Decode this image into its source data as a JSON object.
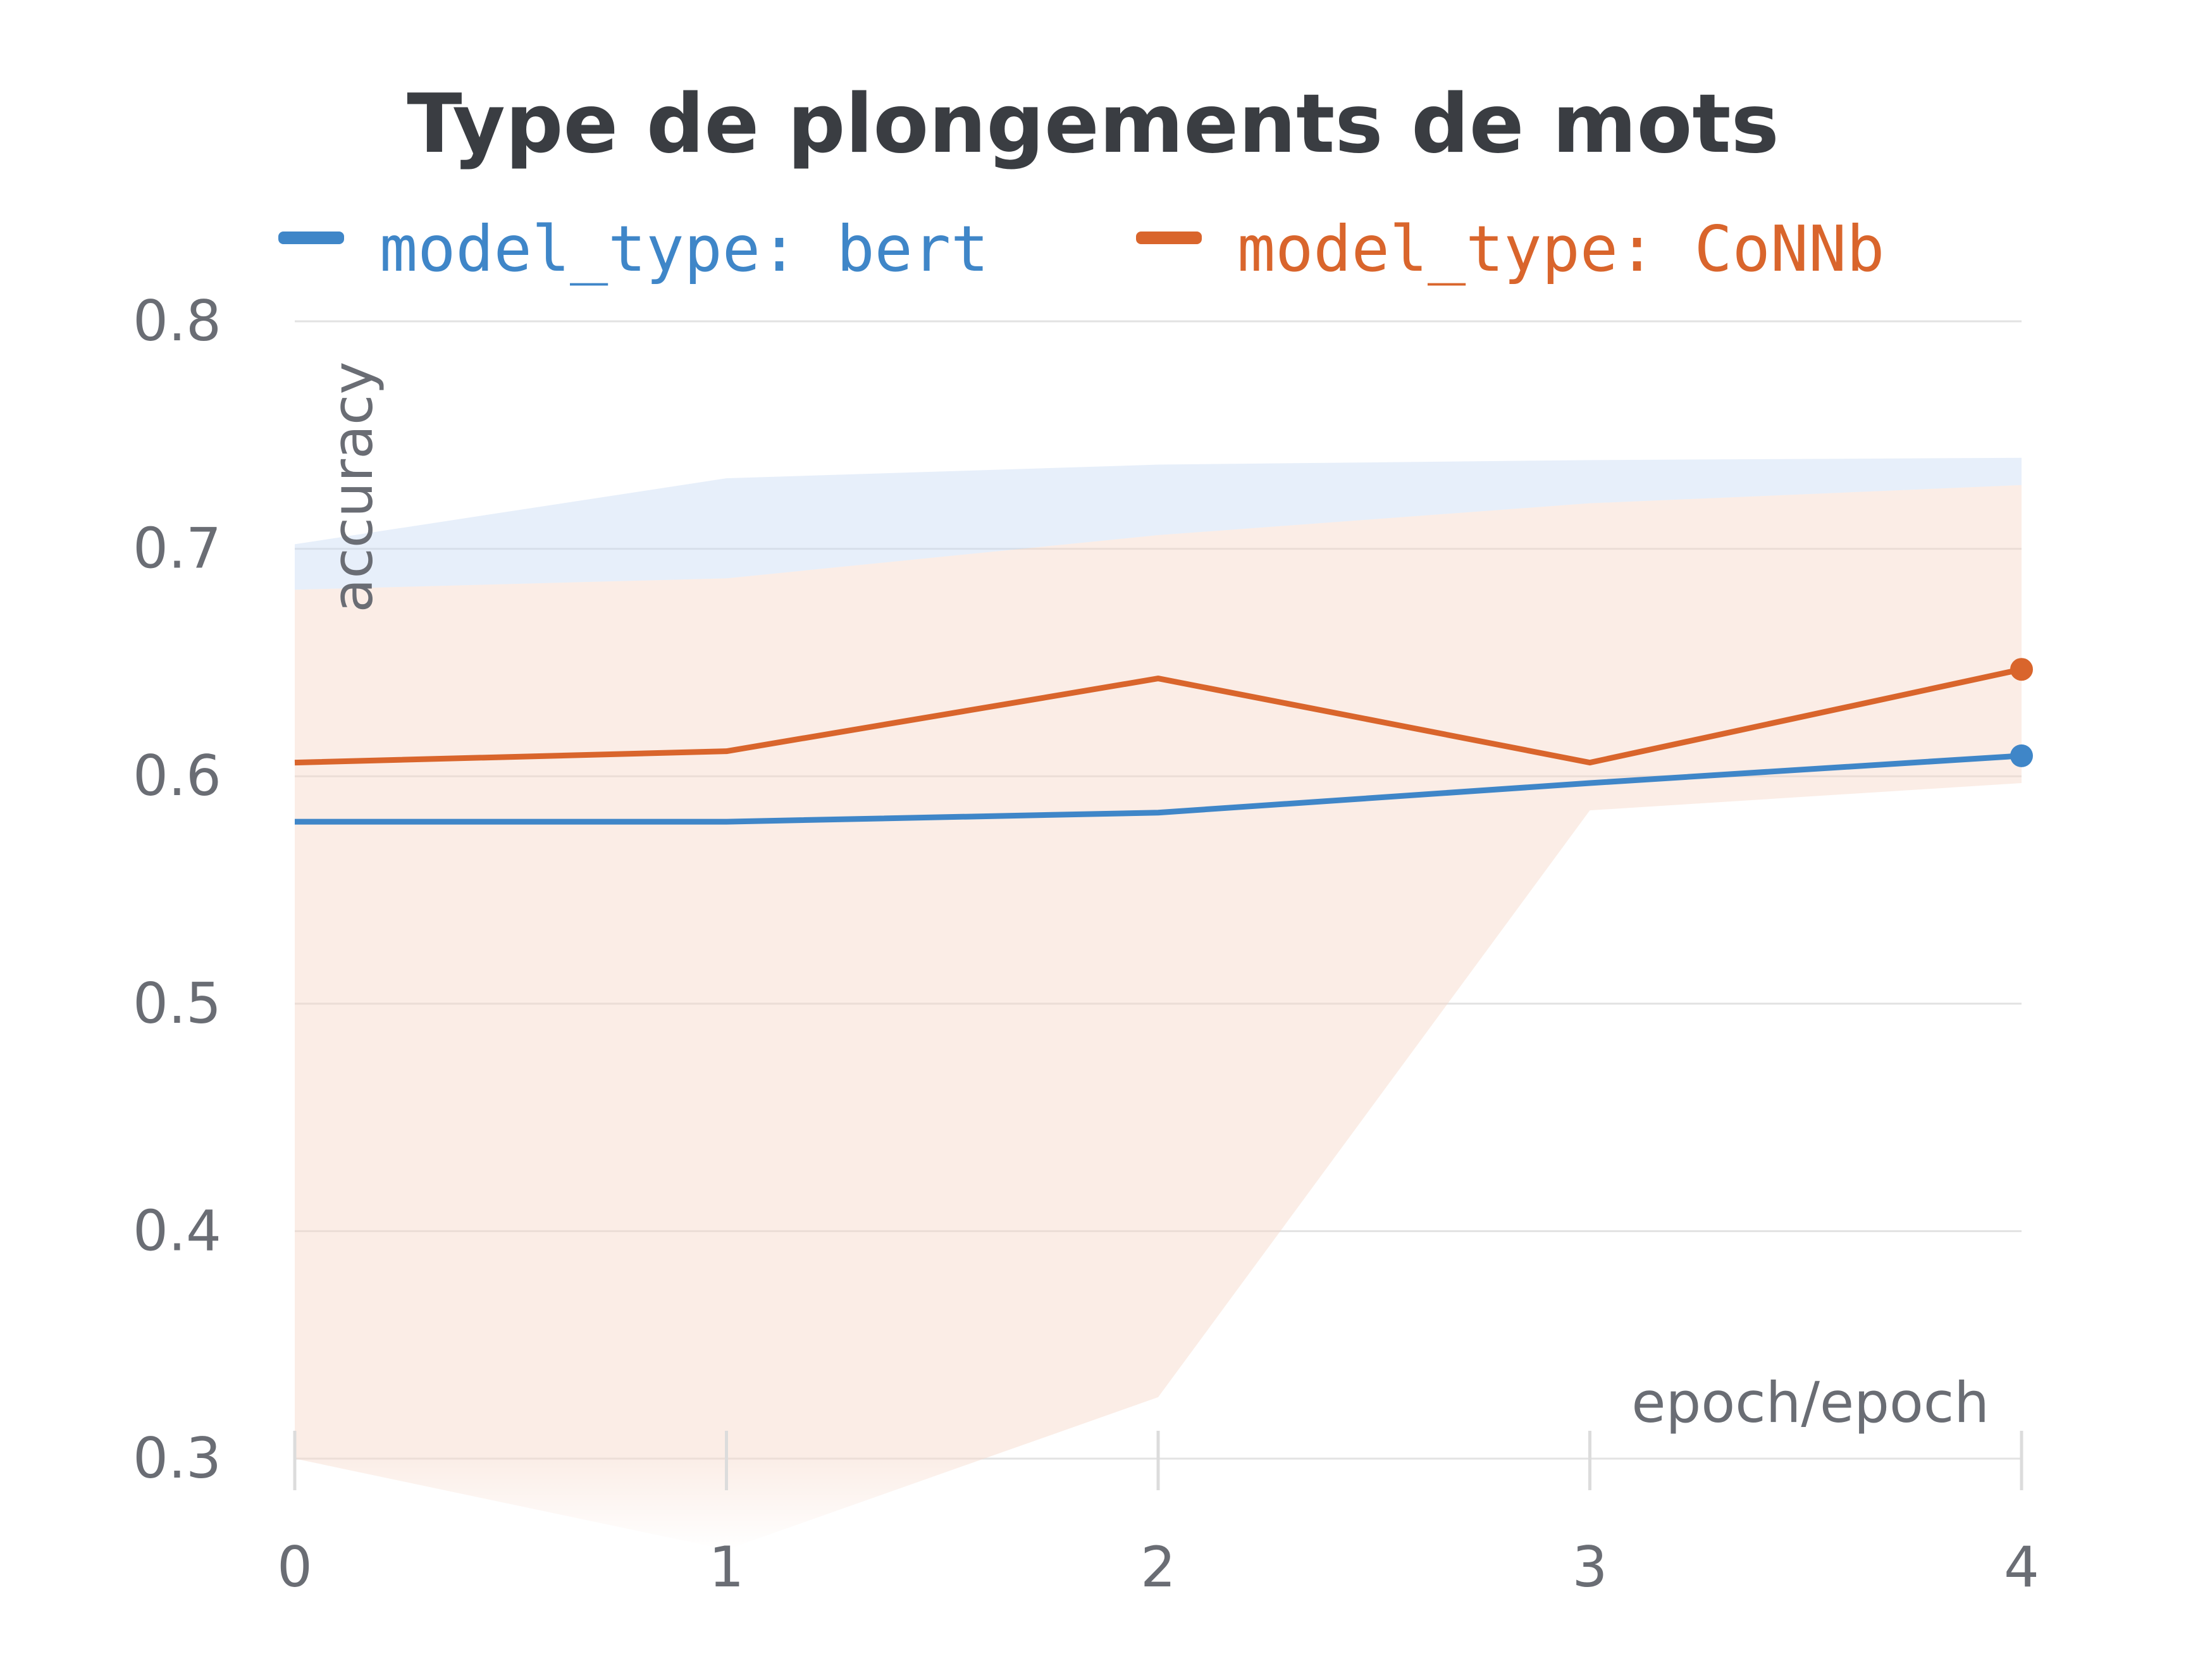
{
  "chart_data": {
    "type": "line",
    "title": "Type de plongements de mots",
    "xlabel": "epoch/epoch",
    "ylabel": "accuracy",
    "x": [
      0,
      1,
      2,
      3,
      4
    ],
    "xlim": [
      0,
      4
    ],
    "ylim": [
      0.28,
      0.8
    ],
    "yticks": [
      0.3,
      0.4,
      0.5,
      0.6,
      0.7,
      0.8
    ],
    "xticks": [
      0,
      1,
      2,
      3,
      4
    ],
    "grid": true,
    "legend_position": "top",
    "series": [
      {
        "name": "model_type: bert",
        "color": "#3f86c8",
        "values": [
          0.58,
          0.58,
          0.584,
          0.597,
          0.609
        ],
        "band_upper": [
          0.702,
          0.731,
          0.737,
          0.739,
          0.74
        ],
        "band_lower": [
          0.682,
          0.687,
          0.706,
          0.72,
          0.728
        ],
        "band_color": "#c9dcf3"
      },
      {
        "name": "model_type: CoNNb",
        "color": "#d9652c",
        "values": [
          0.606,
          0.611,
          0.643,
          0.606,
          0.647
        ],
        "band_upper": [
          0.682,
          0.687,
          0.706,
          0.72,
          0.728
        ],
        "band_lower": [
          0.3,
          0.26,
          0.327,
          0.585,
          0.597
        ],
        "band_color": "#f6d8c7"
      }
    ]
  }
}
